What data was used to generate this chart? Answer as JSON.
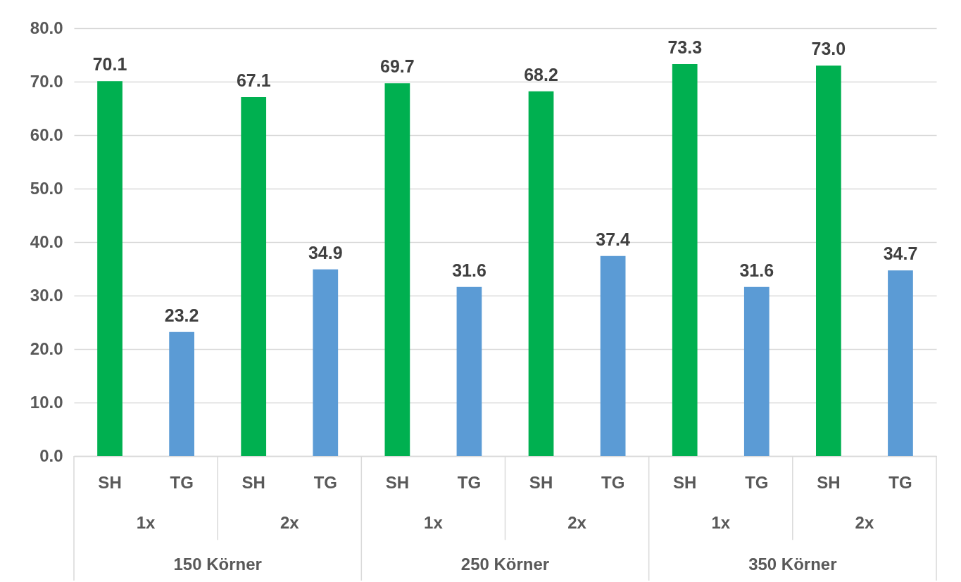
{
  "chart_data": {
    "type": "bar",
    "categories": [
      "SH",
      "TG",
      "SH",
      "TG",
      "SH",
      "TG",
      "SH",
      "TG",
      "SH",
      "TG",
      "SH",
      "TG"
    ],
    "values": [
      70.1,
      23.2,
      67.1,
      34.9,
      69.7,
      31.6,
      68.2,
      37.4,
      73.3,
      31.6,
      73.0,
      34.7
    ],
    "colors": [
      "#00b050",
      "#5b9bd5",
      "#00b050",
      "#5b9bd5",
      "#00b050",
      "#5b9bd5",
      "#00b050",
      "#5b9bd5",
      "#00b050",
      "#5b9bd5",
      "#00b050",
      "#5b9bd5"
    ],
    "value_labels": [
      "70.1",
      "23.2",
      "67.1",
      "34.9",
      "69.7",
      "31.6",
      "68.2",
      "37.4",
      "73.3",
      "31.6",
      "73.0",
      "34.7"
    ],
    "ylim": [
      0,
      80
    ],
    "yticks": [
      {
        "value": 0,
        "label": "0.0"
      },
      {
        "value": 10,
        "label": "10.0"
      },
      {
        "value": 20,
        "label": "20.0"
      },
      {
        "value": 30,
        "label": "30.0"
      },
      {
        "value": 40,
        "label": "40.0"
      },
      {
        "value": 50,
        "label": "50.0"
      },
      {
        "value": 60,
        "label": "60.0"
      },
      {
        "value": 70,
        "label": "70.0"
      },
      {
        "value": 80,
        "label": "80.0"
      }
    ],
    "grid": "y",
    "annotations": [
      "1x",
      "2x",
      "1x",
      "2x",
      "1x",
      "2x",
      "150 Körner",
      "250 Körner",
      "350 Körner"
    ]
  }
}
